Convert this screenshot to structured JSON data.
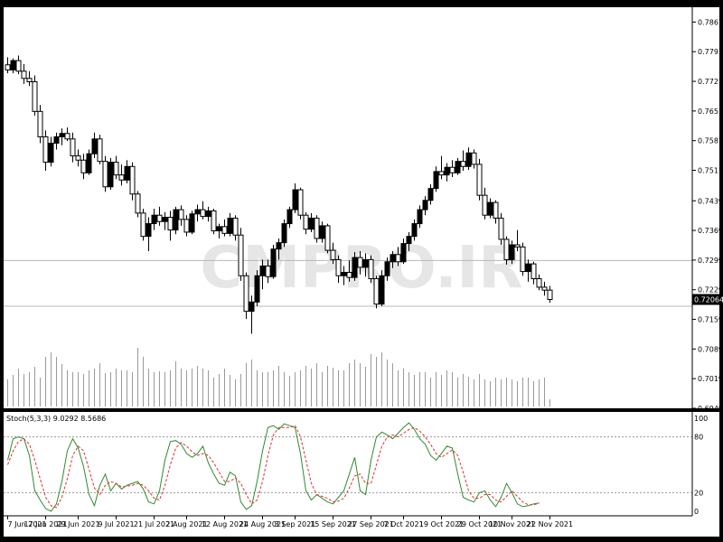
{
  "chart_data": [
    {
      "type": "candlestick",
      "title": "",
      "watermark": "CMPRO.IR",
      "ylim": [
        0.6949,
        0.7896
      ],
      "y_ticks": [
        "0.78610",
        "0.77910",
        "0.77210",
        "0.76510",
        "0.75810",
        "0.75110",
        "0.74390",
        "0.73690",
        "0.72990",
        "0.72290",
        "0.71590",
        "0.70890",
        "0.70190",
        "0.69490"
      ],
      "current_price_label": "0.72064",
      "horizontal_lines": [
        0.7298,
        0.719
      ],
      "ohlc": [
        {
          "o": 0.776,
          "h": 0.7778,
          "l": 0.774,
          "c": 0.7748
        },
        {
          "o": 0.7748,
          "h": 0.7775,
          "l": 0.774,
          "c": 0.777
        },
        {
          "o": 0.777,
          "h": 0.7782,
          "l": 0.7738,
          "c": 0.7745
        },
        {
          "o": 0.7745,
          "h": 0.7762,
          "l": 0.7715,
          "c": 0.7728
        },
        {
          "o": 0.7728,
          "h": 0.7745,
          "l": 0.771,
          "c": 0.772
        },
        {
          "o": 0.772,
          "h": 0.7735,
          "l": 0.764,
          "c": 0.765
        },
        {
          "o": 0.765,
          "h": 0.7665,
          "l": 0.7575,
          "c": 0.759
        },
        {
          "o": 0.759,
          "h": 0.7605,
          "l": 0.751,
          "c": 0.753
        },
        {
          "o": 0.753,
          "h": 0.759,
          "l": 0.752,
          "c": 0.7575
        },
        {
          "o": 0.7575,
          "h": 0.76,
          "l": 0.756,
          "c": 0.759
        },
        {
          "o": 0.759,
          "h": 0.761,
          "l": 0.757,
          "c": 0.7598
        },
        {
          "o": 0.7598,
          "h": 0.7612,
          "l": 0.758,
          "c": 0.7585
        },
        {
          "o": 0.7585,
          "h": 0.76,
          "l": 0.753,
          "c": 0.7545
        },
        {
          "o": 0.7545,
          "h": 0.756,
          "l": 0.752,
          "c": 0.7535
        },
        {
          "o": 0.7535,
          "h": 0.755,
          "l": 0.749,
          "c": 0.7505
        },
        {
          "o": 0.7505,
          "h": 0.756,
          "l": 0.75,
          "c": 0.755
        },
        {
          "o": 0.755,
          "h": 0.76,
          "l": 0.754,
          "c": 0.7585
        },
        {
          "o": 0.7585,
          "h": 0.7595,
          "l": 0.7525,
          "c": 0.7532
        },
        {
          "o": 0.7532,
          "h": 0.7545,
          "l": 0.746,
          "c": 0.7472
        },
        {
          "o": 0.7472,
          "h": 0.754,
          "l": 0.7465,
          "c": 0.753
        },
        {
          "o": 0.753,
          "h": 0.7545,
          "l": 0.749,
          "c": 0.75
        },
        {
          "o": 0.75,
          "h": 0.7525,
          "l": 0.7475,
          "c": 0.7488
        },
        {
          "o": 0.7488,
          "h": 0.7535,
          "l": 0.748,
          "c": 0.752
        },
        {
          "o": 0.752,
          "h": 0.753,
          "l": 0.744,
          "c": 0.7455
        },
        {
          "o": 0.7455,
          "h": 0.7462,
          "l": 0.74,
          "c": 0.741
        },
        {
          "o": 0.741,
          "h": 0.742,
          "l": 0.7345,
          "c": 0.7355
        },
        {
          "o": 0.7355,
          "h": 0.74,
          "l": 0.732,
          "c": 0.7385
        },
        {
          "o": 0.7385,
          "h": 0.742,
          "l": 0.737,
          "c": 0.7405
        },
        {
          "o": 0.7405,
          "h": 0.7425,
          "l": 0.738,
          "c": 0.739
        },
        {
          "o": 0.739,
          "h": 0.7412,
          "l": 0.737,
          "c": 0.74
        },
        {
          "o": 0.74,
          "h": 0.7415,
          "l": 0.7345,
          "c": 0.737
        },
        {
          "o": 0.737,
          "h": 0.7425,
          "l": 0.736,
          "c": 0.7418
        },
        {
          "o": 0.7418,
          "h": 0.7428,
          "l": 0.738,
          "c": 0.7395
        },
        {
          "o": 0.7395,
          "h": 0.7405,
          "l": 0.7355,
          "c": 0.7365
        },
        {
          "o": 0.7365,
          "h": 0.7415,
          "l": 0.736,
          "c": 0.7408
        },
        {
          "o": 0.7408,
          "h": 0.743,
          "l": 0.739,
          "c": 0.7418
        },
        {
          "o": 0.7418,
          "h": 0.7438,
          "l": 0.7395,
          "c": 0.7402
        },
        {
          "o": 0.7402,
          "h": 0.7425,
          "l": 0.739,
          "c": 0.7415
        },
        {
          "o": 0.7415,
          "h": 0.742,
          "l": 0.736,
          "c": 0.7368
        },
        {
          "o": 0.7368,
          "h": 0.7385,
          "l": 0.735,
          "c": 0.7378
        },
        {
          "o": 0.7378,
          "h": 0.7395,
          "l": 0.7355,
          "c": 0.7362
        },
        {
          "o": 0.7362,
          "h": 0.741,
          "l": 0.7355,
          "c": 0.7398
        },
        {
          "o": 0.7398,
          "h": 0.7405,
          "l": 0.7345,
          "c": 0.7358
        },
        {
          "o": 0.7358,
          "h": 0.7375,
          "l": 0.725,
          "c": 0.7262
        },
        {
          "o": 0.7262,
          "h": 0.727,
          "l": 0.716,
          "c": 0.7178
        },
        {
          "o": 0.7178,
          "h": 0.7215,
          "l": 0.7125,
          "c": 0.72
        },
        {
          "o": 0.72,
          "h": 0.7275,
          "l": 0.719,
          "c": 0.7262
        },
        {
          "o": 0.7262,
          "h": 0.73,
          "l": 0.723,
          "c": 0.7285
        },
        {
          "o": 0.7285,
          "h": 0.73,
          "l": 0.7245,
          "c": 0.726
        },
        {
          "o": 0.726,
          "h": 0.7335,
          "l": 0.7255,
          "c": 0.7325
        },
        {
          "o": 0.7325,
          "h": 0.735,
          "l": 0.73,
          "c": 0.734
        },
        {
          "o": 0.734,
          "h": 0.7395,
          "l": 0.733,
          "c": 0.7385
        },
        {
          "o": 0.7385,
          "h": 0.7425,
          "l": 0.7375,
          "c": 0.7418
        },
        {
          "o": 0.7418,
          "h": 0.748,
          "l": 0.741,
          "c": 0.7465
        },
        {
          "o": 0.7465,
          "h": 0.747,
          "l": 0.7395,
          "c": 0.7405
        },
        {
          "o": 0.7405,
          "h": 0.7412,
          "l": 0.736,
          "c": 0.7372
        },
        {
          "o": 0.7372,
          "h": 0.741,
          "l": 0.7365,
          "c": 0.7398
        },
        {
          "o": 0.7398,
          "h": 0.7405,
          "l": 0.734,
          "c": 0.735
        },
        {
          "o": 0.735,
          "h": 0.739,
          "l": 0.734,
          "c": 0.738
        },
        {
          "o": 0.738,
          "h": 0.7385,
          "l": 0.7315,
          "c": 0.7322
        },
        {
          "o": 0.7322,
          "h": 0.734,
          "l": 0.729,
          "c": 0.73
        },
        {
          "o": 0.73,
          "h": 0.731,
          "l": 0.7245,
          "c": 0.7262
        },
        {
          "o": 0.7262,
          "h": 0.7285,
          "l": 0.724,
          "c": 0.727
        },
        {
          "o": 0.727,
          "h": 0.7298,
          "l": 0.7248,
          "c": 0.7258
        },
        {
          "o": 0.7258,
          "h": 0.7318,
          "l": 0.725,
          "c": 0.7305
        },
        {
          "o": 0.7305,
          "h": 0.732,
          "l": 0.7265,
          "c": 0.7282
        },
        {
          "o": 0.7282,
          "h": 0.7315,
          "l": 0.726,
          "c": 0.73
        },
        {
          "o": 0.73,
          "h": 0.731,
          "l": 0.7245,
          "c": 0.7255
        },
        {
          "o": 0.7255,
          "h": 0.7262,
          "l": 0.7185,
          "c": 0.7195
        },
        {
          "o": 0.7195,
          "h": 0.7275,
          "l": 0.719,
          "c": 0.7262
        },
        {
          "o": 0.7262,
          "h": 0.7305,
          "l": 0.725,
          "c": 0.7295
        },
        {
          "o": 0.7295,
          "h": 0.732,
          "l": 0.728,
          "c": 0.7312
        },
        {
          "o": 0.7312,
          "h": 0.733,
          "l": 0.7285,
          "c": 0.7295
        },
        {
          "o": 0.7295,
          "h": 0.735,
          "l": 0.729,
          "c": 0.7338
        },
        {
          "o": 0.7338,
          "h": 0.7365,
          "l": 0.732,
          "c": 0.7355
        },
        {
          "o": 0.7355,
          "h": 0.7395,
          "l": 0.7345,
          "c": 0.7385
        },
        {
          "o": 0.7385,
          "h": 0.7428,
          "l": 0.7375,
          "c": 0.7418
        },
        {
          "o": 0.7418,
          "h": 0.745,
          "l": 0.7405,
          "c": 0.744
        },
        {
          "o": 0.744,
          "h": 0.7478,
          "l": 0.743,
          "c": 0.7468
        },
        {
          "o": 0.7468,
          "h": 0.752,
          "l": 0.746,
          "c": 0.7508
        },
        {
          "o": 0.7508,
          "h": 0.7545,
          "l": 0.749,
          "c": 0.75
        },
        {
          "o": 0.75,
          "h": 0.7528,
          "l": 0.7485,
          "c": 0.7518
        },
        {
          "o": 0.7518,
          "h": 0.7535,
          "l": 0.7495,
          "c": 0.7505
        },
        {
          "o": 0.7505,
          "h": 0.754,
          "l": 0.75,
          "c": 0.7532
        },
        {
          "o": 0.7532,
          "h": 0.7558,
          "l": 0.751,
          "c": 0.752
        },
        {
          "o": 0.752,
          "h": 0.7565,
          "l": 0.7512,
          "c": 0.7552
        },
        {
          "o": 0.7552,
          "h": 0.756,
          "l": 0.7515,
          "c": 0.7525
        },
        {
          "o": 0.7525,
          "h": 0.7538,
          "l": 0.744,
          "c": 0.7452
        },
        {
          "o": 0.7452,
          "h": 0.747,
          "l": 0.7395,
          "c": 0.7405
        },
        {
          "o": 0.7405,
          "h": 0.7445,
          "l": 0.7398,
          "c": 0.7435
        },
        {
          "o": 0.7435,
          "h": 0.744,
          "l": 0.7385,
          "c": 0.7398
        },
        {
          "o": 0.7398,
          "h": 0.741,
          "l": 0.7335,
          "c": 0.7348
        },
        {
          "o": 0.7348,
          "h": 0.7355,
          "l": 0.7288,
          "c": 0.73
        },
        {
          "o": 0.73,
          "h": 0.7345,
          "l": 0.729,
          "c": 0.7335
        },
        {
          "o": 0.7335,
          "h": 0.737,
          "l": 0.732,
          "c": 0.733
        },
        {
          "o": 0.733,
          "h": 0.734,
          "l": 0.7262,
          "c": 0.7272
        },
        {
          "o": 0.7272,
          "h": 0.73,
          "l": 0.7248,
          "c": 0.729
        },
        {
          "o": 0.729,
          "h": 0.7295,
          "l": 0.7242,
          "c": 0.7255
        },
        {
          "o": 0.7255,
          "h": 0.7265,
          "l": 0.7228,
          "c": 0.7235
        },
        {
          "o": 0.7235,
          "h": 0.7248,
          "l": 0.7215,
          "c": 0.7228
        },
        {
          "o": 0.7228,
          "h": 0.7238,
          "l": 0.7198,
          "c": 0.7206
        }
      ],
      "volume": [
        30,
        35,
        42,
        36,
        38,
        44,
        32,
        55,
        60,
        55,
        47,
        40,
        38,
        38,
        36,
        40,
        42,
        48,
        37,
        38,
        42,
        40,
        40,
        38,
        65,
        55,
        42,
        38,
        39,
        38,
        40,
        50,
        42,
        40,
        42,
        45,
        42,
        40,
        32,
        36,
        42,
        35,
        30,
        36,
        48,
        52,
        40,
        38,
        38,
        40,
        45,
        38,
        34,
        38,
        40,
        45,
        42,
        48,
        38,
        45,
        43,
        40,
        40,
        48,
        52,
        48,
        44,
        58,
        55,
        60,
        52,
        48,
        40,
        42,
        38,
        35,
        38,
        38,
        32,
        38,
        35,
        40,
        38,
        32,
        36,
        33,
        30,
        36,
        30,
        28,
        32,
        30,
        32,
        30,
        28,
        32,
        32,
        28,
        30,
        32,
        8
      ],
      "x_tick_labels": [
        "7 Jun 2021",
        "17 Jun 2021",
        "29 Jun 2021",
        "9 Jul 2021",
        "21 Jul 2021",
        "2 Aug 2021",
        "12 Aug 2021",
        "24 Aug 2021",
        "3 Sep 2021",
        "15 Sep 2021",
        "27 Sep 2021",
        "7 Oct 2021",
        "19 Oct 2021",
        "29 Oct 2021",
        "10 Nov 2021",
        "22 Nov 2021"
      ]
    },
    {
      "type": "line",
      "title": "Stoch(5,3,3) 9.0292 8.5686",
      "ylim": [
        0,
        100
      ],
      "y_ticks": [
        "100",
        "80",
        "20",
        "0"
      ],
      "levels": [
        80,
        20
      ],
      "series": [
        {
          "name": "main",
          "color": "#2e8b2e",
          "values": [
            55,
            78,
            80,
            78,
            60,
            22,
            12,
            3,
            0,
            8,
            32,
            65,
            78,
            68,
            48,
            18,
            6,
            28,
            40,
            22,
            30,
            24,
            28,
            30,
            32,
            24,
            10,
            8,
            22,
            55,
            75,
            76,
            72,
            62,
            58,
            62,
            70,
            52,
            40,
            30,
            28,
            42,
            38,
            10,
            2,
            6,
            32,
            65,
            90,
            92,
            88,
            94,
            92,
            90,
            62,
            22,
            12,
            18,
            14,
            10,
            8,
            15,
            22,
            40,
            58,
            22,
            18,
            55,
            80,
            85,
            82,
            78,
            84,
            90,
            95,
            88,
            78,
            72,
            60,
            55,
            62,
            70,
            68,
            40,
            15,
            12,
            10,
            20,
            22,
            12,
            5,
            15,
            30,
            20,
            8,
            5,
            6,
            8,
            9
          ]
        },
        {
          "name": "signal",
          "color": "#e03030",
          "values": [
            50,
            65,
            75,
            78,
            72,
            55,
            35,
            15,
            6,
            4,
            15,
            35,
            60,
            70,
            65,
            45,
            25,
            18,
            28,
            32,
            30,
            26,
            27,
            28,
            30,
            28,
            22,
            14,
            12,
            28,
            50,
            68,
            74,
            70,
            64,
            60,
            62,
            60,
            52,
            42,
            32,
            32,
            36,
            30,
            18,
            8,
            12,
            32,
            60,
            82,
            90,
            90,
            90,
            92,
            80,
            55,
            30,
            18,
            16,
            14,
            10,
            11,
            14,
            25,
            38,
            40,
            30,
            30,
            50,
            70,
            80,
            82,
            80,
            84,
            88,
            90,
            86,
            80,
            72,
            62,
            58,
            62,
            66,
            60,
            42,
            22,
            14,
            14,
            18,
            18,
            12,
            10,
            16,
            22,
            16,
            10,
            7,
            7,
            8.5
          ]
        }
      ]
    }
  ]
}
